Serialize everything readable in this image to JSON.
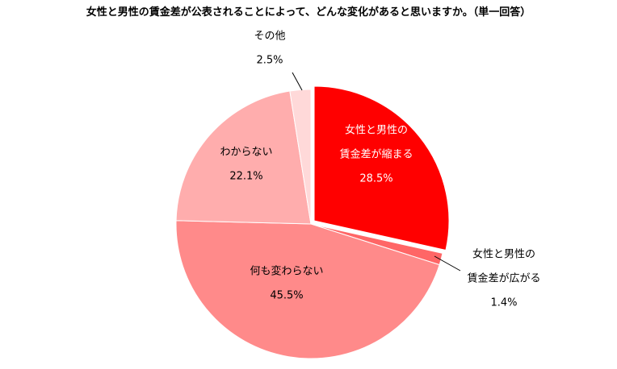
{
  "chart_data": {
    "type": "pie",
    "title": "女性と男性の賃金差が公表されることによって、どんな変化があると思いますか。（単一回答）",
    "slices": [
      {
        "label_lines": [
          "女性と男性の",
          "賃金差が縮まる"
        ],
        "value": 28.5,
        "value_label": "28.5%",
        "color": "#ff0000",
        "label_color": "#ffffff"
      },
      {
        "label_lines": [
          "女性と男性の",
          "賃金差が広がる"
        ],
        "value": 1.4,
        "value_label": "1.4%",
        "color": "#ff6666",
        "label_color": "#000000"
      },
      {
        "label_lines": [
          "何も変わらない"
        ],
        "value": 45.5,
        "value_label": "45.5%",
        "color": "#ff8a8a",
        "label_color": "#000000"
      },
      {
        "label_lines": [
          "わからない"
        ],
        "value": 22.1,
        "value_label": "22.1%",
        "color": "#ffadad",
        "label_color": "#000000"
      },
      {
        "label_lines": [
          "その他"
        ],
        "value": 2.5,
        "value_label": "2.5%",
        "color": "#ffd9d9",
        "label_color": "#000000"
      }
    ],
    "start_angle_deg": 0,
    "direction": "clockwise",
    "legend": "none"
  }
}
